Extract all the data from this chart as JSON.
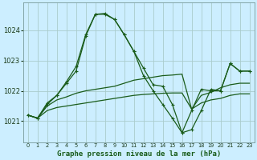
{
  "title": "Graphe pression niveau de la mer (hPa)",
  "background_color": "#cceeff",
  "grid_color": "#aacccc",
  "line_color": "#1a5c1a",
  "yticks": [
    1021,
    1022,
    1023,
    1024
  ],
  "ylim": [
    1020.3,
    1024.9
  ],
  "xlim": [
    -0.5,
    23.5
  ],
  "s1_y": [
    1021.2,
    1021.1,
    1021.35,
    1021.45,
    1021.5,
    1021.55,
    1021.6,
    1021.65,
    1021.7,
    1021.75,
    1021.8,
    1021.85,
    1021.88,
    1021.9,
    1021.92,
    1021.93,
    1021.93,
    1021.4,
    1021.6,
    1021.7,
    1021.75,
    1021.85,
    1021.9,
    1021.9
  ],
  "s2_y": [
    1021.2,
    1021.1,
    1021.5,
    1021.7,
    1021.8,
    1021.92,
    1022.0,
    1022.05,
    1022.1,
    1022.15,
    1022.25,
    1022.35,
    1022.4,
    1022.45,
    1022.5,
    1022.52,
    1022.55,
    1021.4,
    1021.85,
    1021.95,
    1022.1,
    1022.2,
    1022.25,
    1022.25
  ],
  "s3_y": [
    1021.2,
    1021.1,
    1021.55,
    1021.85,
    1022.25,
    1022.65,
    1023.8,
    1024.52,
    1024.52,
    1024.35,
    1023.85,
    1023.3,
    1022.75,
    1022.2,
    1022.15,
    1021.55,
    1020.62,
    1020.72,
    1021.35,
    1022.05,
    1022.0,
    1022.9,
    1022.65,
    1022.65
  ],
  "s4_y": [
    1021.2,
    1021.1,
    1021.6,
    1021.85,
    1022.3,
    1022.8,
    1023.85,
    1024.52,
    1024.55,
    1024.35,
    1023.85,
    1023.3,
    1022.5,
    1022.0,
    1021.55,
    1021.1,
    1020.62,
    1021.35,
    1022.05,
    1022.0,
    1022.0,
    1022.9,
    1022.65,
    1022.65
  ]
}
